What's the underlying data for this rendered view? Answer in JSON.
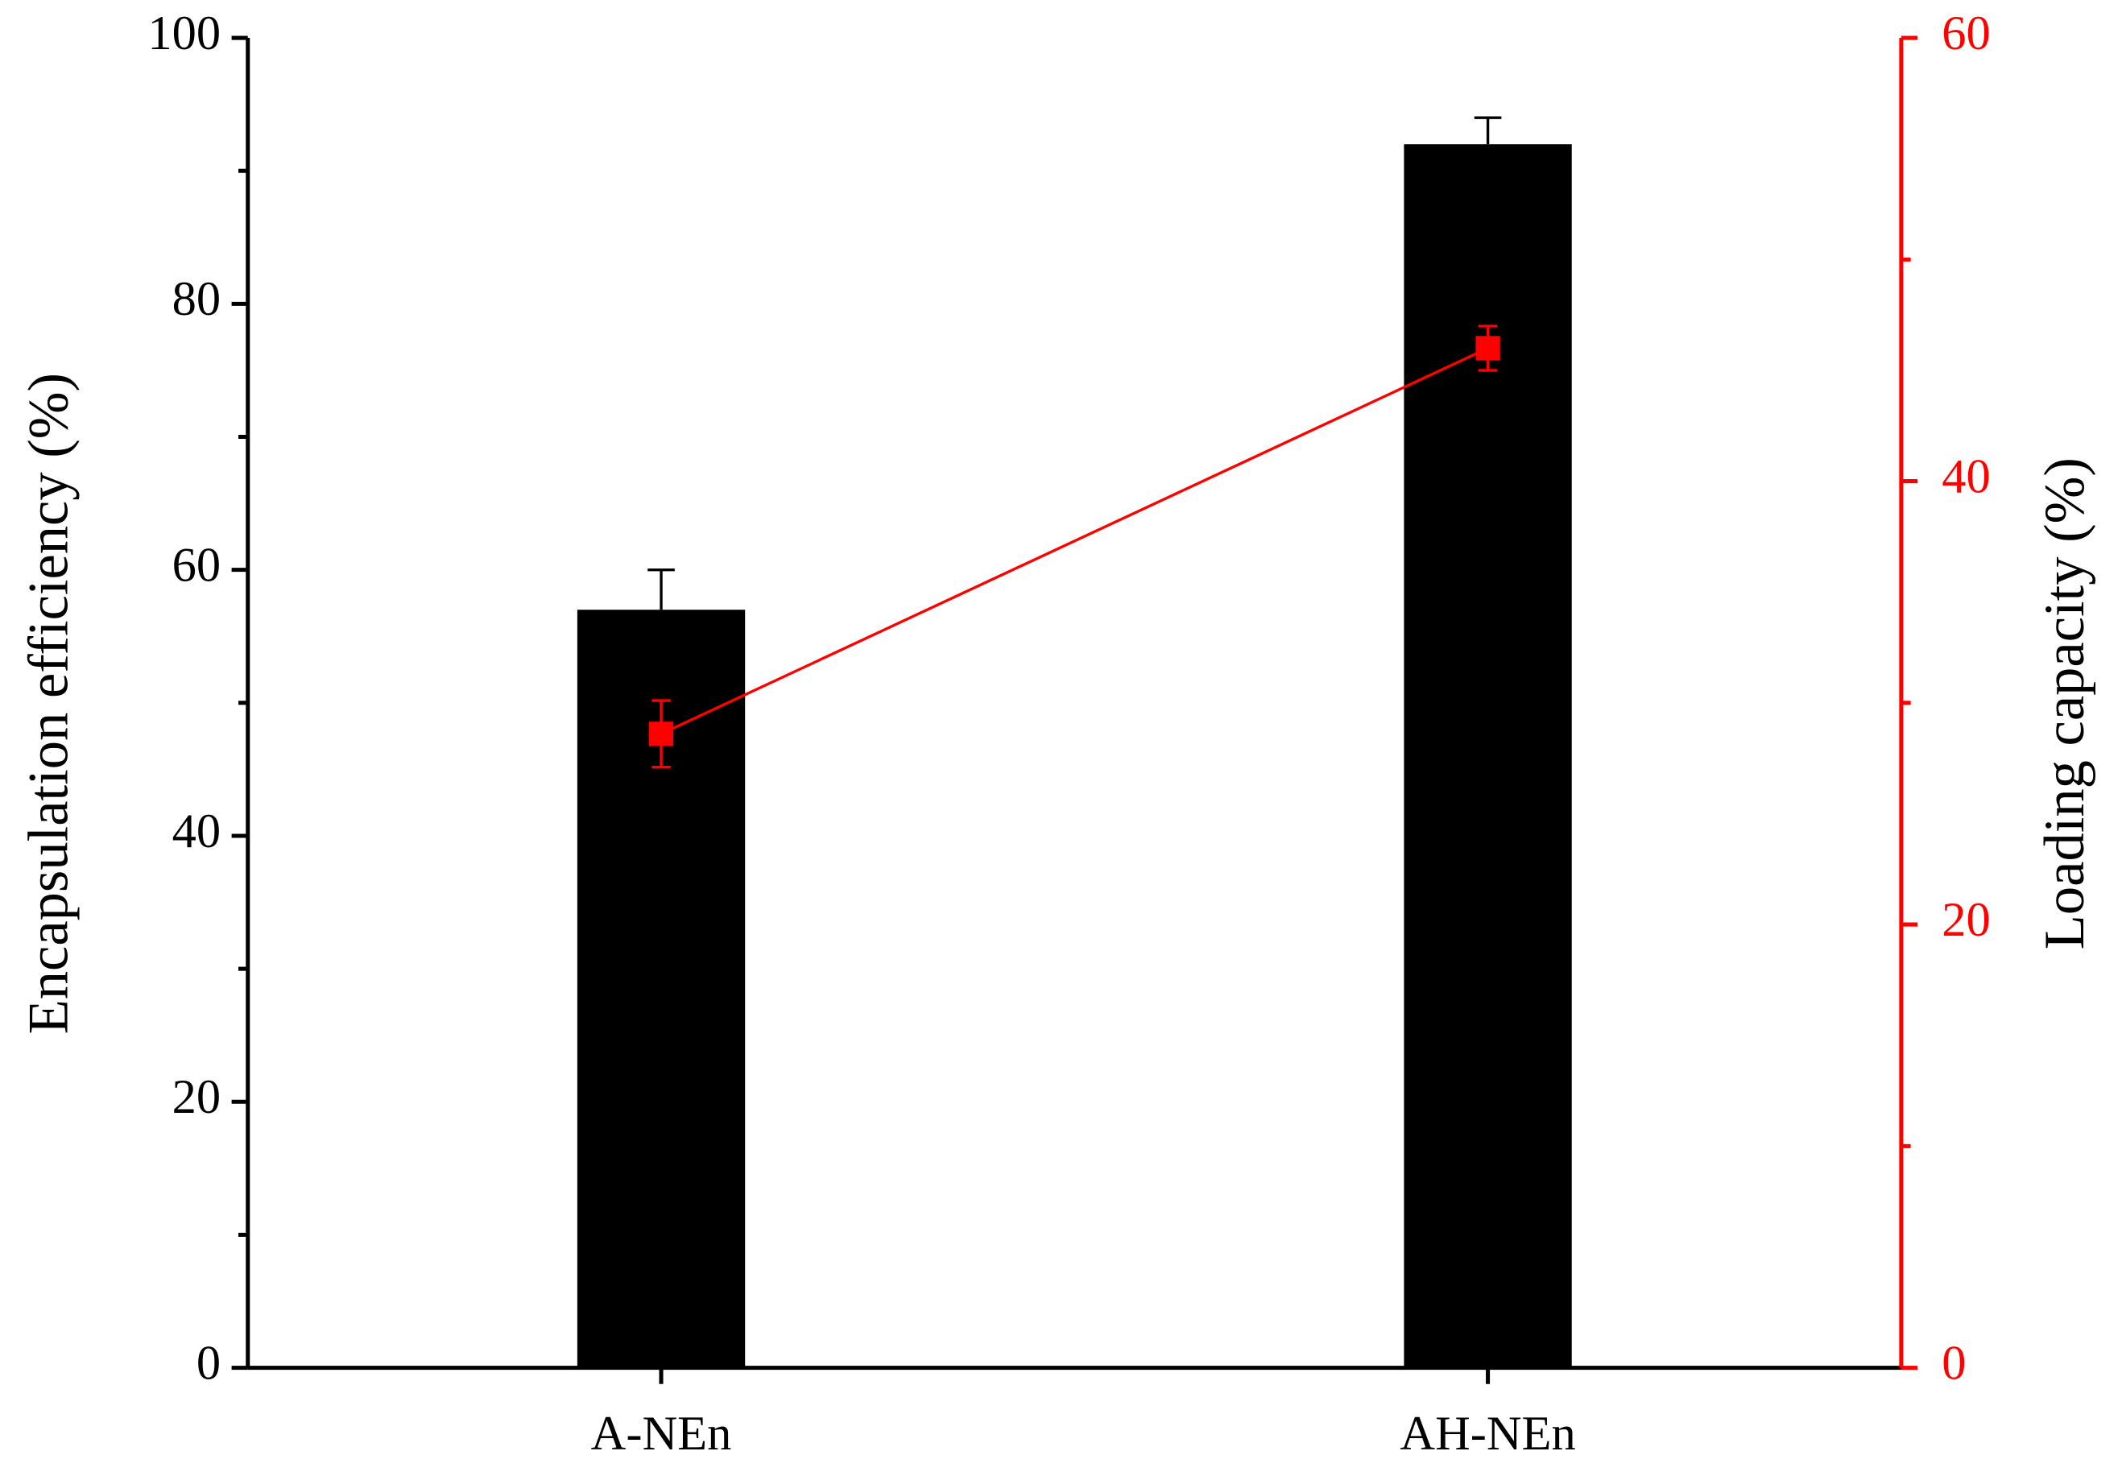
{
  "chart_data": {
    "type": "bar",
    "categories": [
      "A-NEn",
      "AH-NEn"
    ],
    "ylabel": "Encapsulation efficiency (%)",
    "y2label": "Loading capacity (%)",
    "series": [
      {
        "type": "bar",
        "color": "#000000",
        "values": [
          57,
          92
        ],
        "errors": [
          3,
          2
        ]
      },
      {
        "type": "line",
        "axis": "y2",
        "color": "#ff0000",
        "values": [
          28.6,
          46
        ],
        "errors": [
          1.5,
          1
        ]
      }
    ],
    "ylim": [
      0,
      100
    ],
    "yticks": [
      0,
      20,
      40,
      60,
      80,
      100
    ],
    "yminor": [
      10,
      30,
      50,
      70,
      90
    ],
    "y2lim": [
      0,
      60
    ],
    "y2ticks": [
      0,
      20,
      40,
      60
    ],
    "y2minor": [
      10,
      30,
      50
    ],
    "y2color": "#ff0000"
  }
}
